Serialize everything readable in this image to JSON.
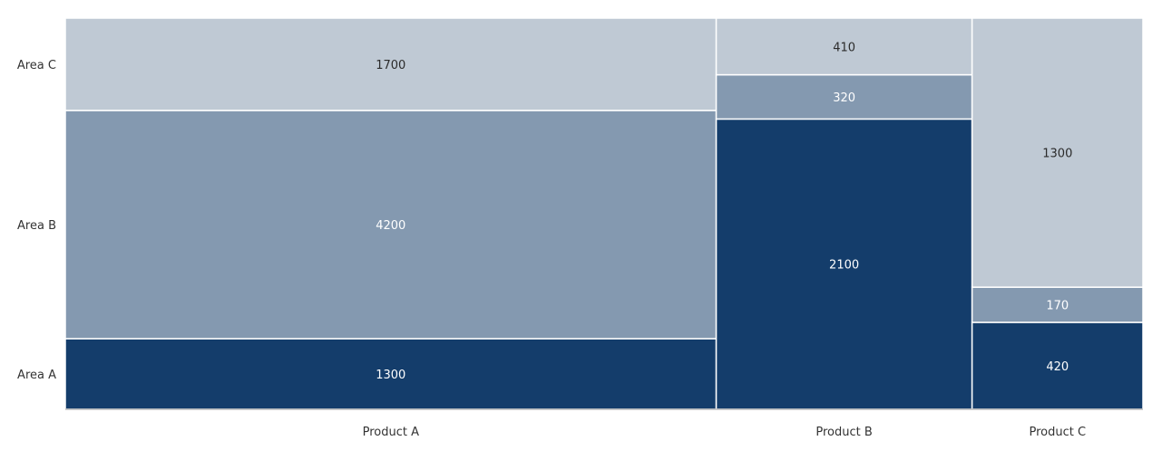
{
  "chart_data": {
    "type": "mosaic",
    "title": "",
    "xlabel": "",
    "ylabel": "",
    "categories": [
      "Product A",
      "Product B",
      "Product C"
    ],
    "series": [
      {
        "name": "Area A",
        "values": [
          1300,
          2100,
          420
        ]
      },
      {
        "name": "Area B",
        "values": [
          4200,
          320,
          170
        ]
      },
      {
        "name": "Area C",
        "values": [
          1700,
          410,
          1300
        ]
      }
    ],
    "y_axis_labels": [
      "Area C",
      "Area B",
      "Area A"
    ],
    "colors": {
      "Area A": "#143d6b",
      "Area B": "#8499b0",
      "Area C": "#bfc9d4"
    },
    "legend": "none",
    "grid": false
  }
}
